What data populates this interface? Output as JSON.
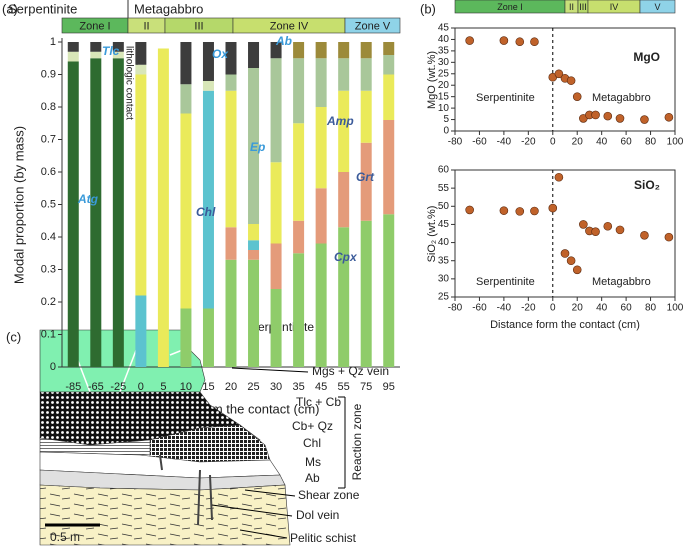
{
  "chart_data": [
    {
      "type": "bar",
      "stacked": true,
      "panel_label": "(a)",
      "ylabel": "Modal proportion (by mass)",
      "xlabel": "Distance form the contact (cm)",
      "lithology_labels": [
        "Serpentinite",
        "Metagabbro"
      ],
      "zones": [
        {
          "name": "Zone I",
          "color": "#5cb85c"
        },
        {
          "name": "II",
          "color": "#c9e07a"
        },
        {
          "name": "III",
          "color": "#b5d86a"
        },
        {
          "name": "Zone IV",
          "color": "#c7df6e"
        },
        {
          "name": "Zone V",
          "color": "#8fd3e8"
        }
      ],
      "annotations": [
        "lithologic contact"
      ],
      "categories": [
        "-85",
        "-65",
        "-25",
        "0",
        "5",
        "10",
        "15",
        "20",
        "25",
        "30",
        "35",
        "45",
        "55",
        "75",
        "95"
      ],
      "ylim": [
        0,
        1
      ],
      "yticks": [
        0,
        0.1,
        0.2,
        0.3,
        0.4,
        0.5,
        0.6,
        0.7,
        0.8,
        0.9,
        1
      ],
      "series": [
        {
          "name": "Atg",
          "color": "#2e6b30",
          "values": [
            0.94,
            0.95,
            0.95,
            0,
            0,
            0,
            0,
            0,
            0,
            0,
            0,
            0,
            0,
            0,
            0
          ]
        },
        {
          "name": "Cpx",
          "color": "#8fcc6a",
          "values": [
            0,
            0,
            0,
            0,
            0,
            0.18,
            0.18,
            0.33,
            0.33,
            0.24,
            0.35,
            0.38,
            0.43,
            0.45,
            0.47
          ]
        },
        {
          "name": "Grt",
          "color": "#e49b7a",
          "values": [
            0,
            0,
            0,
            0,
            0,
            0,
            0,
            0.1,
            0.03,
            0.14,
            0.1,
            0.17,
            0.17,
            0.24,
            0.29
          ]
        },
        {
          "name": "Chl",
          "color": "#5cc3cf",
          "values": [
            0,
            0,
            0,
            0.22,
            0,
            0,
            0.67,
            0,
            0.03,
            0,
            0,
            0,
            0,
            0,
            0
          ]
        },
        {
          "name": "Amp",
          "color": "#eaea5a",
          "values": [
            0,
            0,
            0,
            0.68,
            0.98,
            0.6,
            0,
            0.42,
            0.05,
            0.25,
            0.3,
            0.25,
            0.25,
            0.16,
            0.14
          ]
        },
        {
          "name": "Ep",
          "color": "#a9c79a",
          "values": [
            0,
            0,
            0,
            0,
            0,
            0.09,
            0,
            0.05,
            0.48,
            0.32,
            0.2,
            0.15,
            0.1,
            0.1,
            0.06
          ]
        },
        {
          "name": "Tlc",
          "color": "#d8e6b8",
          "values": [
            0.03,
            0.02,
            0.02,
            0.03,
            0,
            0,
            0.03,
            0,
            0,
            0,
            0,
            0,
            0,
            0,
            0
          ]
        },
        {
          "name": "Ox",
          "color": "#3d3d3d",
          "values": [
            0.03,
            0.03,
            0.03,
            0.07,
            0,
            0.13,
            0.12,
            0.1,
            0.08,
            0.05,
            0,
            0,
            0,
            0,
            0
          ]
        },
        {
          "name": "Ab",
          "color": "#9c8a3a",
          "values": [
            0,
            0,
            0,
            0,
            0,
            0,
            0,
            0,
            0,
            0,
            0.05,
            0.05,
            0.05,
            0.05,
            0.04
          ]
        }
      ]
    },
    {
      "type": "scatter",
      "panel_label": "(b)",
      "title": "MgO",
      "ylabel": "MgO (wt.%)",
      "zones": [
        {
          "name": "Zone I",
          "color": "#5cb85c"
        },
        {
          "name": "II",
          "color": "#c9e07a"
        },
        {
          "name": "III",
          "color": "#b5d86a"
        },
        {
          "name": "IV",
          "color": "#c7df6e"
        },
        {
          "name": "V",
          "color": "#8fd3e8"
        }
      ],
      "annotations": [
        "Serpentinite",
        "Metagabbro"
      ],
      "color": "#c0622a",
      "x": [
        -68,
        -40,
        -27,
        -15,
        0,
        5,
        10,
        15,
        20,
        25,
        30,
        35,
        45,
        55,
        75,
        95
      ],
      "values": [
        39.5,
        39.5,
        39,
        39,
        23.5,
        25,
        23,
        22,
        15,
        5.5,
        7,
        7,
        6.5,
        5.5,
        5,
        6
      ],
      "xlim": [
        -80,
        100
      ],
      "xticks": [
        -80,
        -60,
        -40,
        -20,
        0,
        20,
        40,
        60,
        80,
        100
      ],
      "ylim": [
        0,
        45
      ],
      "yticks": [
        0,
        5,
        10,
        15,
        20,
        25,
        30,
        35,
        40,
        45
      ]
    },
    {
      "type": "scatter",
      "title": "SiO₂",
      "ylabel": "SiO₂ (wt.%)",
      "xlabel": "Distance form the contact (cm)",
      "annotations": [
        "Serpentinite",
        "Metagabbro"
      ],
      "color": "#c0622a",
      "x": [
        -68,
        -40,
        -27,
        -15,
        0,
        5,
        10,
        15,
        20,
        25,
        30,
        35,
        45,
        55,
        75,
        95
      ],
      "values": [
        49,
        48.8,
        48.6,
        48.7,
        49.5,
        58,
        37,
        35,
        32.5,
        45,
        43.2,
        43,
        44.5,
        43.5,
        42,
        41.5
      ],
      "xlim": [
        -80,
        100
      ],
      "xticks": [
        -80,
        -60,
        -40,
        -20,
        0,
        20,
        40,
        60,
        80,
        100
      ],
      "ylim": [
        25,
        60
      ],
      "yticks": [
        25,
        30,
        35,
        40,
        45,
        50,
        55,
        60
      ]
    }
  ],
  "diagram": {
    "panel_label": "(c)",
    "labels": [
      "Serpentinite",
      "Mgs + Qz vein",
      "Tlc + Cb",
      "Cb+ Qz",
      "Chl",
      "Ms",
      "Ab",
      "Reaction zone",
      "Shear zone",
      "Dol vein",
      "Pelitic schist"
    ],
    "scale_bar": "0.5 m"
  }
}
